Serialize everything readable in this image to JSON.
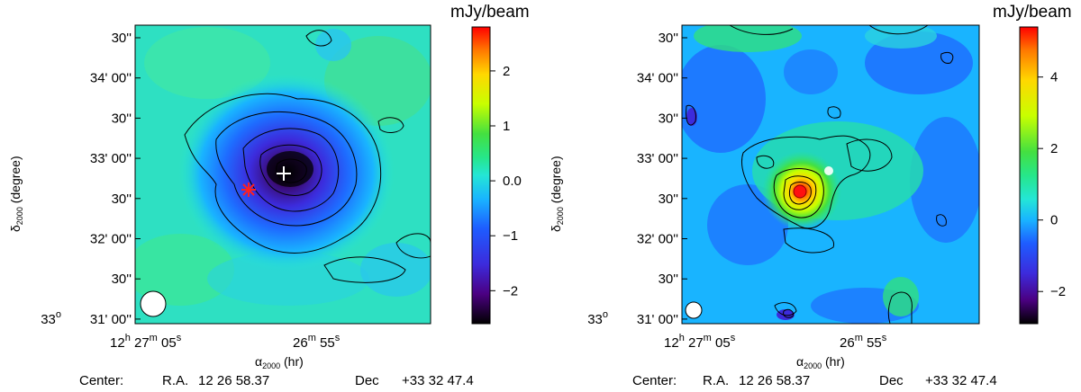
{
  "colorbar_unit": "mJy/beam",
  "center_caption": {
    "label": "Center:",
    "ra_label": "R.A.",
    "ra_value": "12 26 58.37",
    "dec_label": "Dec",
    "dec_value": "+33 32 47.4"
  },
  "axes": {
    "ylabel_main": "δ",
    "ylabel_sub": "2000",
    "ylabel_tail": "(degree)",
    "xlabel_main": "α",
    "xlabel_sub": "2000",
    "xlabel_tail": "(hr)",
    "x_tick_first": {
      "h": "12",
      "hs": "h",
      "m": "27",
      "ms": "m",
      "s": "05",
      "ss": "s"
    },
    "x_tick_second": {
      "m": "26",
      "ms": "m",
      "s": "55",
      "ss": "s"
    },
    "y_ticks": [
      "30''",
      "34' 00''",
      "30''",
      "33' 00''",
      "30''",
      "32' 00''",
      "30''",
      "31' 00''"
    ],
    "y_deg_prefix": "33",
    "y_deg_symbol": "o"
  },
  "colors": {
    "colormap": [
      "#000000",
      "#4b0082",
      "#3c2bdc",
      "#1e5cff",
      "#19b4ff",
      "#24e6d6",
      "#26e68a",
      "#44e040",
      "#c8ff00",
      "#ffd800",
      "#ff7a00",
      "#ff0000"
    ],
    "marker_star": "#ff2020",
    "marker_cross": "#ffffff"
  },
  "chart_data": [
    {
      "type": "heatmap",
      "title": "",
      "xlabel": "α2000 (hr)",
      "ylabel": "δ2000 (degree)",
      "colorbar_range": [
        -2.6,
        2.8
      ],
      "colorbar_ticks": [
        {
          "value": 2,
          "label": "2"
        },
        {
          "value": 1,
          "label": "1"
        },
        {
          "value": 0,
          "label": "0.0"
        },
        {
          "value": -1,
          "label": "−1"
        },
        {
          "value": -2,
          "label": "−2"
        }
      ],
      "features": [
        {
          "kind": "absorption-trough",
          "peak_mJy_per_beam": -2.6,
          "location": "center"
        },
        {
          "kind": "marker",
          "symbol": "cross",
          "label": "white cross"
        },
        {
          "kind": "marker",
          "symbol": "star",
          "label": "red star"
        }
      ],
      "beam": "ellipse lower-left"
    },
    {
      "type": "heatmap",
      "title": "",
      "xlabel": "α2000 (hr)",
      "ylabel": "δ2000 (degree)",
      "colorbar_range": [
        -2.9,
        5.4
      ],
      "colorbar_ticks": [
        {
          "value": 4,
          "label": "4"
        },
        {
          "value": 2,
          "label": "2"
        },
        {
          "value": 0,
          "label": "0"
        },
        {
          "value": -2,
          "label": "−2"
        }
      ],
      "features": [
        {
          "kind": "emission-peak",
          "peak_mJy_per_beam": 5.2,
          "location": "center-left"
        },
        {
          "kind": "marker",
          "symbol": "circle",
          "label": "white circle"
        }
      ],
      "beam": "ellipse lower-left"
    }
  ]
}
